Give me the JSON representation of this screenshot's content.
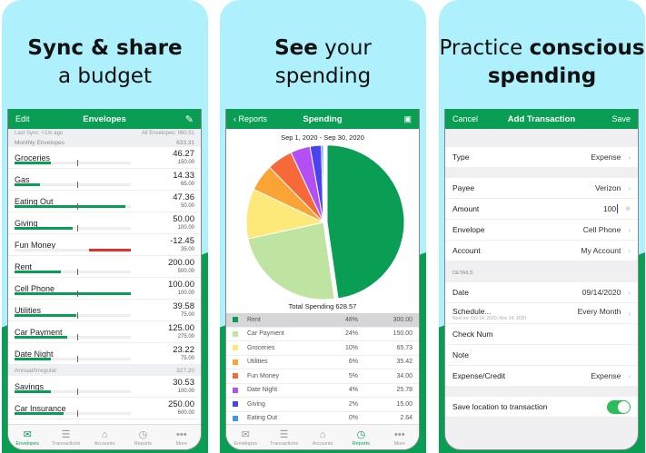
{
  "panels": [
    {
      "headline_bold": "Sync & share",
      "headline_rest": "a budget"
    },
    {
      "headline_bold": "See",
      "headline_rest_1": " your",
      "headline_rest_2": "spending"
    },
    {
      "headline_rest": "Practice ",
      "headline_bold": "conscious",
      "headline_bold_2": "spending"
    }
  ],
  "envelopes": {
    "nav": {
      "left": "Edit",
      "title": "Envelopes",
      "right_icon": "compose-icon"
    },
    "last_sync": "Last Sync: <1m ago",
    "all_envelopes": "All Envelopes: 960.51",
    "monthly_label": "Monthly Envelopes",
    "monthly_total": "633.31",
    "monthly": [
      {
        "name": "Groceries",
        "amount": "46.27",
        "budget": "150.00",
        "fill": 0.31
      },
      {
        "name": "Gas",
        "amount": "14.33",
        "budget": "65.00",
        "fill": 0.22
      },
      {
        "name": "Eating Out",
        "amount": "47.36",
        "budget": "50.00",
        "fill": 0.95
      },
      {
        "name": "Giving",
        "amount": "50.00",
        "budget": "100.00",
        "fill": 0.5
      },
      {
        "name": "Fun Money",
        "amount": "-12.45",
        "budget": "35.00",
        "fill": -0.36
      },
      {
        "name": "Rent",
        "amount": "200.00",
        "budget": "500.00",
        "fill": 0.4
      },
      {
        "name": "Cell Phone",
        "amount": "100.00",
        "budget": "100.00",
        "fill": 1.0
      },
      {
        "name": "Utilities",
        "amount": "39.58",
        "budget": "75.00",
        "fill": 0.53
      },
      {
        "name": "Car Payment",
        "amount": "125.00",
        "budget": "275.00",
        "fill": 0.45
      },
      {
        "name": "Date Night",
        "amount": "23.22",
        "budget": "75.00",
        "fill": 0.31
      }
    ],
    "annual_label": "Annual/Irregular",
    "annual_total": "327.20",
    "annual": [
      {
        "name": "Savings",
        "amount": "30.53",
        "budget": "100.00",
        "fill": 0.31
      },
      {
        "name": "Car Insurance",
        "amount": "250.00",
        "budget": "600.00",
        "fill": 0.42
      }
    ],
    "colors": {
      "positive": "#0a9e55",
      "negative": "#e03030"
    }
  },
  "tabs": [
    "Envelopes",
    "Transactions",
    "Accounts",
    "Reports",
    "More"
  ],
  "spending": {
    "nav": {
      "back": "Reports",
      "title": "Spending",
      "right_icon": "calendar-icon"
    },
    "date_range": "Sep 1, 2020 - Sep 30, 2020",
    "total": "Total Spending 628.57",
    "rows": [
      {
        "name": "Rent",
        "pct": "48%",
        "value": "300.00",
        "color": "#0a9e55"
      },
      {
        "name": "Car Payment",
        "pct": "24%",
        "value": "150.00",
        "color": "#bfe3a0"
      },
      {
        "name": "Groceries",
        "pct": "10%",
        "value": "65.73",
        "color": "#fde97a"
      },
      {
        "name": "Utilities",
        "pct": "6%",
        "value": "35.42",
        "color": "#fba436"
      },
      {
        "name": "Fun Money",
        "pct": "5%",
        "value": "34.00",
        "color": "#f8693a"
      },
      {
        "name": "Date Night",
        "pct": "4%",
        "value": "25.78",
        "color": "#b34ff5"
      },
      {
        "name": "Giving",
        "pct": "2%",
        "value": "15.00",
        "color": "#4a44f0"
      },
      {
        "name": "Eating Out",
        "pct": "0%",
        "value": "2.64",
        "color": "#3a9ae8"
      }
    ]
  },
  "chart_data": {
    "type": "pie",
    "title": "Sep 1, 2020 - Sep 30, 2020",
    "categories": [
      "Rent",
      "Car Payment",
      "Groceries",
      "Utilities",
      "Fun Money",
      "Date Night",
      "Giving",
      "Eating Out"
    ],
    "values": [
      300.0,
      150.0,
      65.73,
      35.42,
      34.0,
      25.78,
      15.0,
      2.64
    ]
  },
  "transaction": {
    "nav": {
      "left": "Cancel",
      "title": "Add Transaction",
      "right": "Save"
    },
    "type": {
      "label": "Type",
      "value": "Expense"
    },
    "payee": {
      "label": "Payee",
      "value": "Verizon"
    },
    "amount": {
      "label": "Amount",
      "value": "100"
    },
    "envelope": {
      "label": "Envelope",
      "value": "Cell Phone"
    },
    "account": {
      "label": "Account",
      "value": "My Account"
    },
    "details_label": "DETAILS",
    "date": {
      "label": "Date",
      "value": "09/14/2020"
    },
    "schedule": {
      "label": "Schedule...",
      "value": "Every Month",
      "next": "Next on: Oct 14, 2020; Nov 14, 2020"
    },
    "check_num": {
      "label": "Check Num"
    },
    "note": {
      "label": "Note"
    },
    "expense_credit": {
      "label": "Expense/Credit",
      "value": "Expense"
    },
    "save_location": {
      "label": "Save location to transaction",
      "on": true
    }
  }
}
